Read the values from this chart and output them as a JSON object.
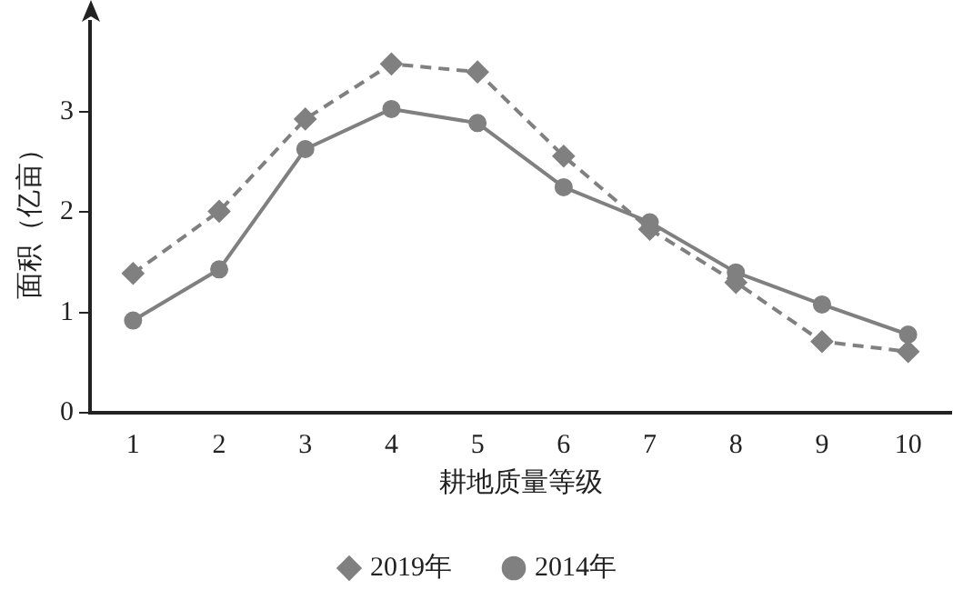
{
  "chart_data": {
    "type": "line",
    "xlabel": "耕地质量等级",
    "ylabel": "面积（亿亩）",
    "categories": [
      "1",
      "2",
      "3",
      "4",
      "5",
      "6",
      "7",
      "8",
      "9",
      "10"
    ],
    "series": [
      {
        "name": "2014年",
        "color": "#808080",
        "values": [
          0.92,
          1.43,
          2.63,
          3.03,
          2.89,
          2.25,
          1.9,
          1.4,
          1.08,
          0.78
        ],
        "marker": "circle",
        "line_style": "solid"
      },
      {
        "name": "2019年",
        "color": "#808080",
        "values": [
          1.39,
          2.01,
          2.93,
          3.48,
          3.4,
          2.56,
          1.83,
          1.3,
          0.71,
          0.61
        ],
        "marker": "diamond",
        "line_style": "dashed"
      }
    ],
    "ylim": [
      0,
      3.9
    ],
    "yticks": [
      0,
      1,
      2,
      3
    ],
    "grid": false,
    "legend": "bottom"
  }
}
